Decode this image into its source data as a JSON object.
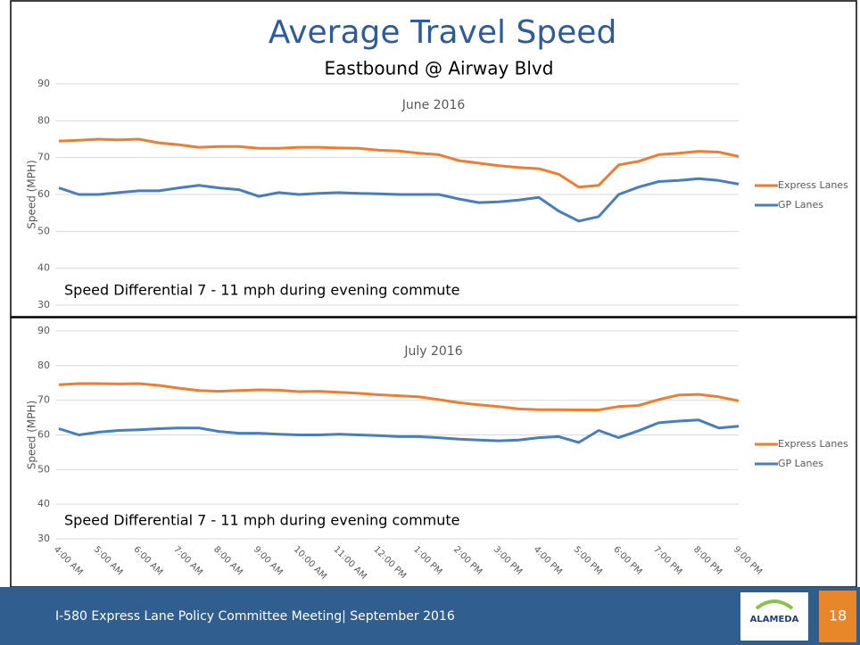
{
  "title": "Average Travel Speed",
  "subtitle": "Eastbound @ Airway Blvd",
  "footer": "I-580 Express Lane Policy Committee Meeting| September 2016",
  "page_number": "18",
  "logo": "ALAMEDA",
  "chart_data": [
    {
      "type": "line",
      "title": "June 2016",
      "y_label": "Speed (MPH)",
      "annotation": "Speed Differential 7 - 11 mph during evening commute",
      "ylim": [
        30,
        90
      ],
      "yticks": [
        30,
        40,
        50,
        60,
        70,
        80,
        90
      ],
      "grid": true,
      "legend": "right",
      "series": [
        {
          "name": "Express Lanes",
          "color": "#ed7d31",
          "values": [
            74.5,
            74.7,
            75,
            74.8,
            75,
            74,
            73.5,
            72.8,
            73,
            73,
            72.5,
            72.5,
            72.8,
            72.8,
            72.6,
            72.5,
            72,
            71.8,
            71.2,
            70.8,
            69.2,
            68.5,
            67.8,
            67.3,
            67,
            65.5,
            62,
            62.5,
            68,
            69,
            70.8,
            71.2,
            71.7,
            71.5,
            70.3
          ]
        },
        {
          "name": "GP Lanes",
          "color": "#4a7ebb",
          "values": [
            61.8,
            60,
            60,
            60.5,
            61,
            61,
            61.8,
            62.5,
            61.8,
            61.3,
            59.5,
            60.5,
            60,
            60.3,
            60.5,
            60.3,
            60.2,
            60,
            60,
            60,
            58.8,
            57.8,
            58,
            58.5,
            59.2,
            55.5,
            52.8,
            54,
            60,
            62,
            63.5,
            63.8,
            64.3,
            63.8,
            62.8
          ]
        }
      ]
    },
    {
      "type": "line",
      "title": "July 2016",
      "y_label": "Speed (MPH)",
      "annotation": "Speed Differential 7 - 11 mph during evening commute",
      "categories": [
        "4:00 AM",
        null,
        "5:00 AM",
        null,
        "6:00 AM",
        null,
        "7:00 AM",
        null,
        "8:00 AM",
        null,
        "9:00 AM",
        null,
        "10:00 AM",
        null,
        "11:00 AM",
        null,
        "12:00 PM",
        null,
        "1:00 PM",
        null,
        "2:00 PM",
        null,
        "3:00 PM",
        null,
        "4:00 PM",
        null,
        "5:00 PM",
        null,
        "6:00 PM",
        null,
        "7:00 PM",
        null,
        "8:00 PM",
        null,
        "9:00 PM"
      ],
      "ylim": [
        30,
        90
      ],
      "yticks": [
        30,
        40,
        50,
        60,
        70,
        80,
        90
      ],
      "grid": true,
      "legend": "right",
      "series": [
        {
          "name": "Express Lanes",
          "color": "#ed7d31",
          "values": [
            74.5,
            74.8,
            74.8,
            74.7,
            74.8,
            74.3,
            73.5,
            72.8,
            72.6,
            72.8,
            73,
            72.9,
            72.5,
            72.6,
            72.3,
            72,
            71.6,
            71.3,
            71,
            70.2,
            69.3,
            68.7,
            68.2,
            67.5,
            67.3,
            67.3,
            67.2,
            67.2,
            68.2,
            68.5,
            70.2,
            71.5,
            71.7,
            71,
            69.8
          ]
        },
        {
          "name": "GP Lanes",
          "color": "#4a7ebb",
          "values": [
            61.8,
            60,
            60.8,
            61.3,
            61.5,
            61.8,
            62,
            62,
            61,
            60.5,
            60.5,
            60.2,
            60,
            60,
            60.2,
            60,
            59.8,
            59.5,
            59.5,
            59.2,
            58.8,
            58.5,
            58.3,
            58.5,
            59.2,
            59.5,
            57.8,
            61.3,
            59.2,
            61.2,
            63.5,
            64,
            64.3,
            62,
            62.5
          ]
        }
      ]
    }
  ]
}
